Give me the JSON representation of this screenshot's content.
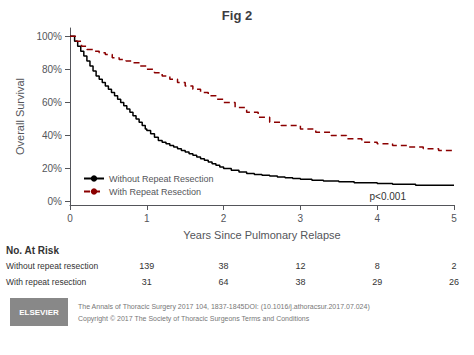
{
  "chart_data": {
    "type": "step",
    "title": "Fig 2",
    "x_label": "Years Since Pulmonary Relapse",
    "y_label": "Overall Survival",
    "xlim": [
      0,
      5
    ],
    "ylim": [
      -0.02,
      1.05
    ],
    "xticks": [
      0,
      1,
      2,
      3,
      4,
      5
    ],
    "yticks": [
      {
        "value": 0,
        "label": "0%"
      },
      {
        "value": 0.2,
        "label": "20%"
      },
      {
        "value": 0.4,
        "label": "40%"
      },
      {
        "value": 0.6,
        "label": "60%"
      },
      {
        "value": 0.8,
        "label": "80%"
      },
      {
        "value": 1.0,
        "label": "100%"
      }
    ],
    "grid": false,
    "legend": "lower left",
    "series": [
      {
        "name": "Without Repeat Resection",
        "color": "#000000",
        "line_style": "solid",
        "x": [
          0.0,
          0.06,
          0.1,
          0.14,
          0.18,
          0.22,
          0.26,
          0.3,
          0.34,
          0.38,
          0.42,
          0.46,
          0.5,
          0.54,
          0.58,
          0.62,
          0.66,
          0.7,
          0.74,
          0.78,
          0.82,
          0.86,
          0.9,
          0.94,
          0.98,
          1.0,
          1.05,
          1.1,
          1.15,
          1.2,
          1.25,
          1.3,
          1.35,
          1.4,
          1.45,
          1.5,
          1.55,
          1.6,
          1.65,
          1.7,
          1.75,
          1.8,
          1.85,
          1.9,
          1.95,
          2.0,
          2.1,
          2.2,
          2.3,
          2.4,
          2.5,
          2.6,
          2.7,
          2.8,
          2.9,
          3.0,
          3.15,
          3.3,
          3.5,
          3.7,
          4.0,
          4.2,
          4.5,
          4.8,
          5.0
        ],
        "values": [
          1.0,
          0.97,
          0.94,
          0.91,
          0.88,
          0.85,
          0.82,
          0.79,
          0.76,
          0.74,
          0.72,
          0.7,
          0.68,
          0.66,
          0.64,
          0.62,
          0.6,
          0.58,
          0.56,
          0.54,
          0.52,
          0.5,
          0.48,
          0.46,
          0.44,
          0.43,
          0.41,
          0.39,
          0.37,
          0.36,
          0.35,
          0.34,
          0.33,
          0.32,
          0.31,
          0.3,
          0.29,
          0.28,
          0.27,
          0.26,
          0.25,
          0.24,
          0.23,
          0.22,
          0.21,
          0.2,
          0.19,
          0.18,
          0.17,
          0.165,
          0.16,
          0.155,
          0.15,
          0.145,
          0.14,
          0.135,
          0.13,
          0.125,
          0.12,
          0.115,
          0.11,
          0.105,
          0.1,
          0.1,
          0.1
        ]
      },
      {
        "name": "With Repeat Resection",
        "color": "#8b0000",
        "line_style": "dashed",
        "x": [
          0.0,
          0.08,
          0.15,
          0.22,
          0.3,
          0.38,
          0.46,
          0.55,
          0.64,
          0.73,
          0.82,
          0.91,
          1.0,
          1.1,
          1.2,
          1.3,
          1.4,
          1.5,
          1.6,
          1.7,
          1.8,
          1.9,
          2.0,
          2.15,
          2.3,
          2.45,
          2.6,
          2.75,
          3.0,
          3.2,
          3.4,
          3.6,
          3.8,
          4.0,
          4.2,
          4.4,
          4.6,
          4.8,
          5.0
        ],
        "values": [
          1.0,
          0.97,
          0.94,
          0.92,
          0.91,
          0.9,
          0.89,
          0.87,
          0.86,
          0.85,
          0.84,
          0.82,
          0.8,
          0.78,
          0.76,
          0.74,
          0.72,
          0.7,
          0.68,
          0.66,
          0.64,
          0.62,
          0.6,
          0.57,
          0.54,
          0.51,
          0.48,
          0.46,
          0.44,
          0.42,
          0.4,
          0.38,
          0.36,
          0.35,
          0.34,
          0.33,
          0.32,
          0.31,
          0.3
        ]
      }
    ],
    "annotations": [
      "p<0.001"
    ],
    "at_risk": {
      "title": "No. At Risk",
      "x": [
        1,
        2,
        3,
        4,
        5
      ],
      "rows": [
        {
          "label": "Without repeat resection",
          "values": [
            139,
            38,
            12,
            8,
            2
          ]
        },
        {
          "label": "With repeat resection",
          "values": [
            31,
            64,
            38,
            29,
            26
          ]
        }
      ]
    },
    "footer": [
      "The Annals of Thoracic Surgery 2017 104, 1837-1845DOI: (10.1016/j.athoracsur.2017.07.024)",
      "Copyright © 2017 The Society of Thoracic Surgeons Terms and Conditions"
    ],
    "logo": "ELSEVIER"
  }
}
